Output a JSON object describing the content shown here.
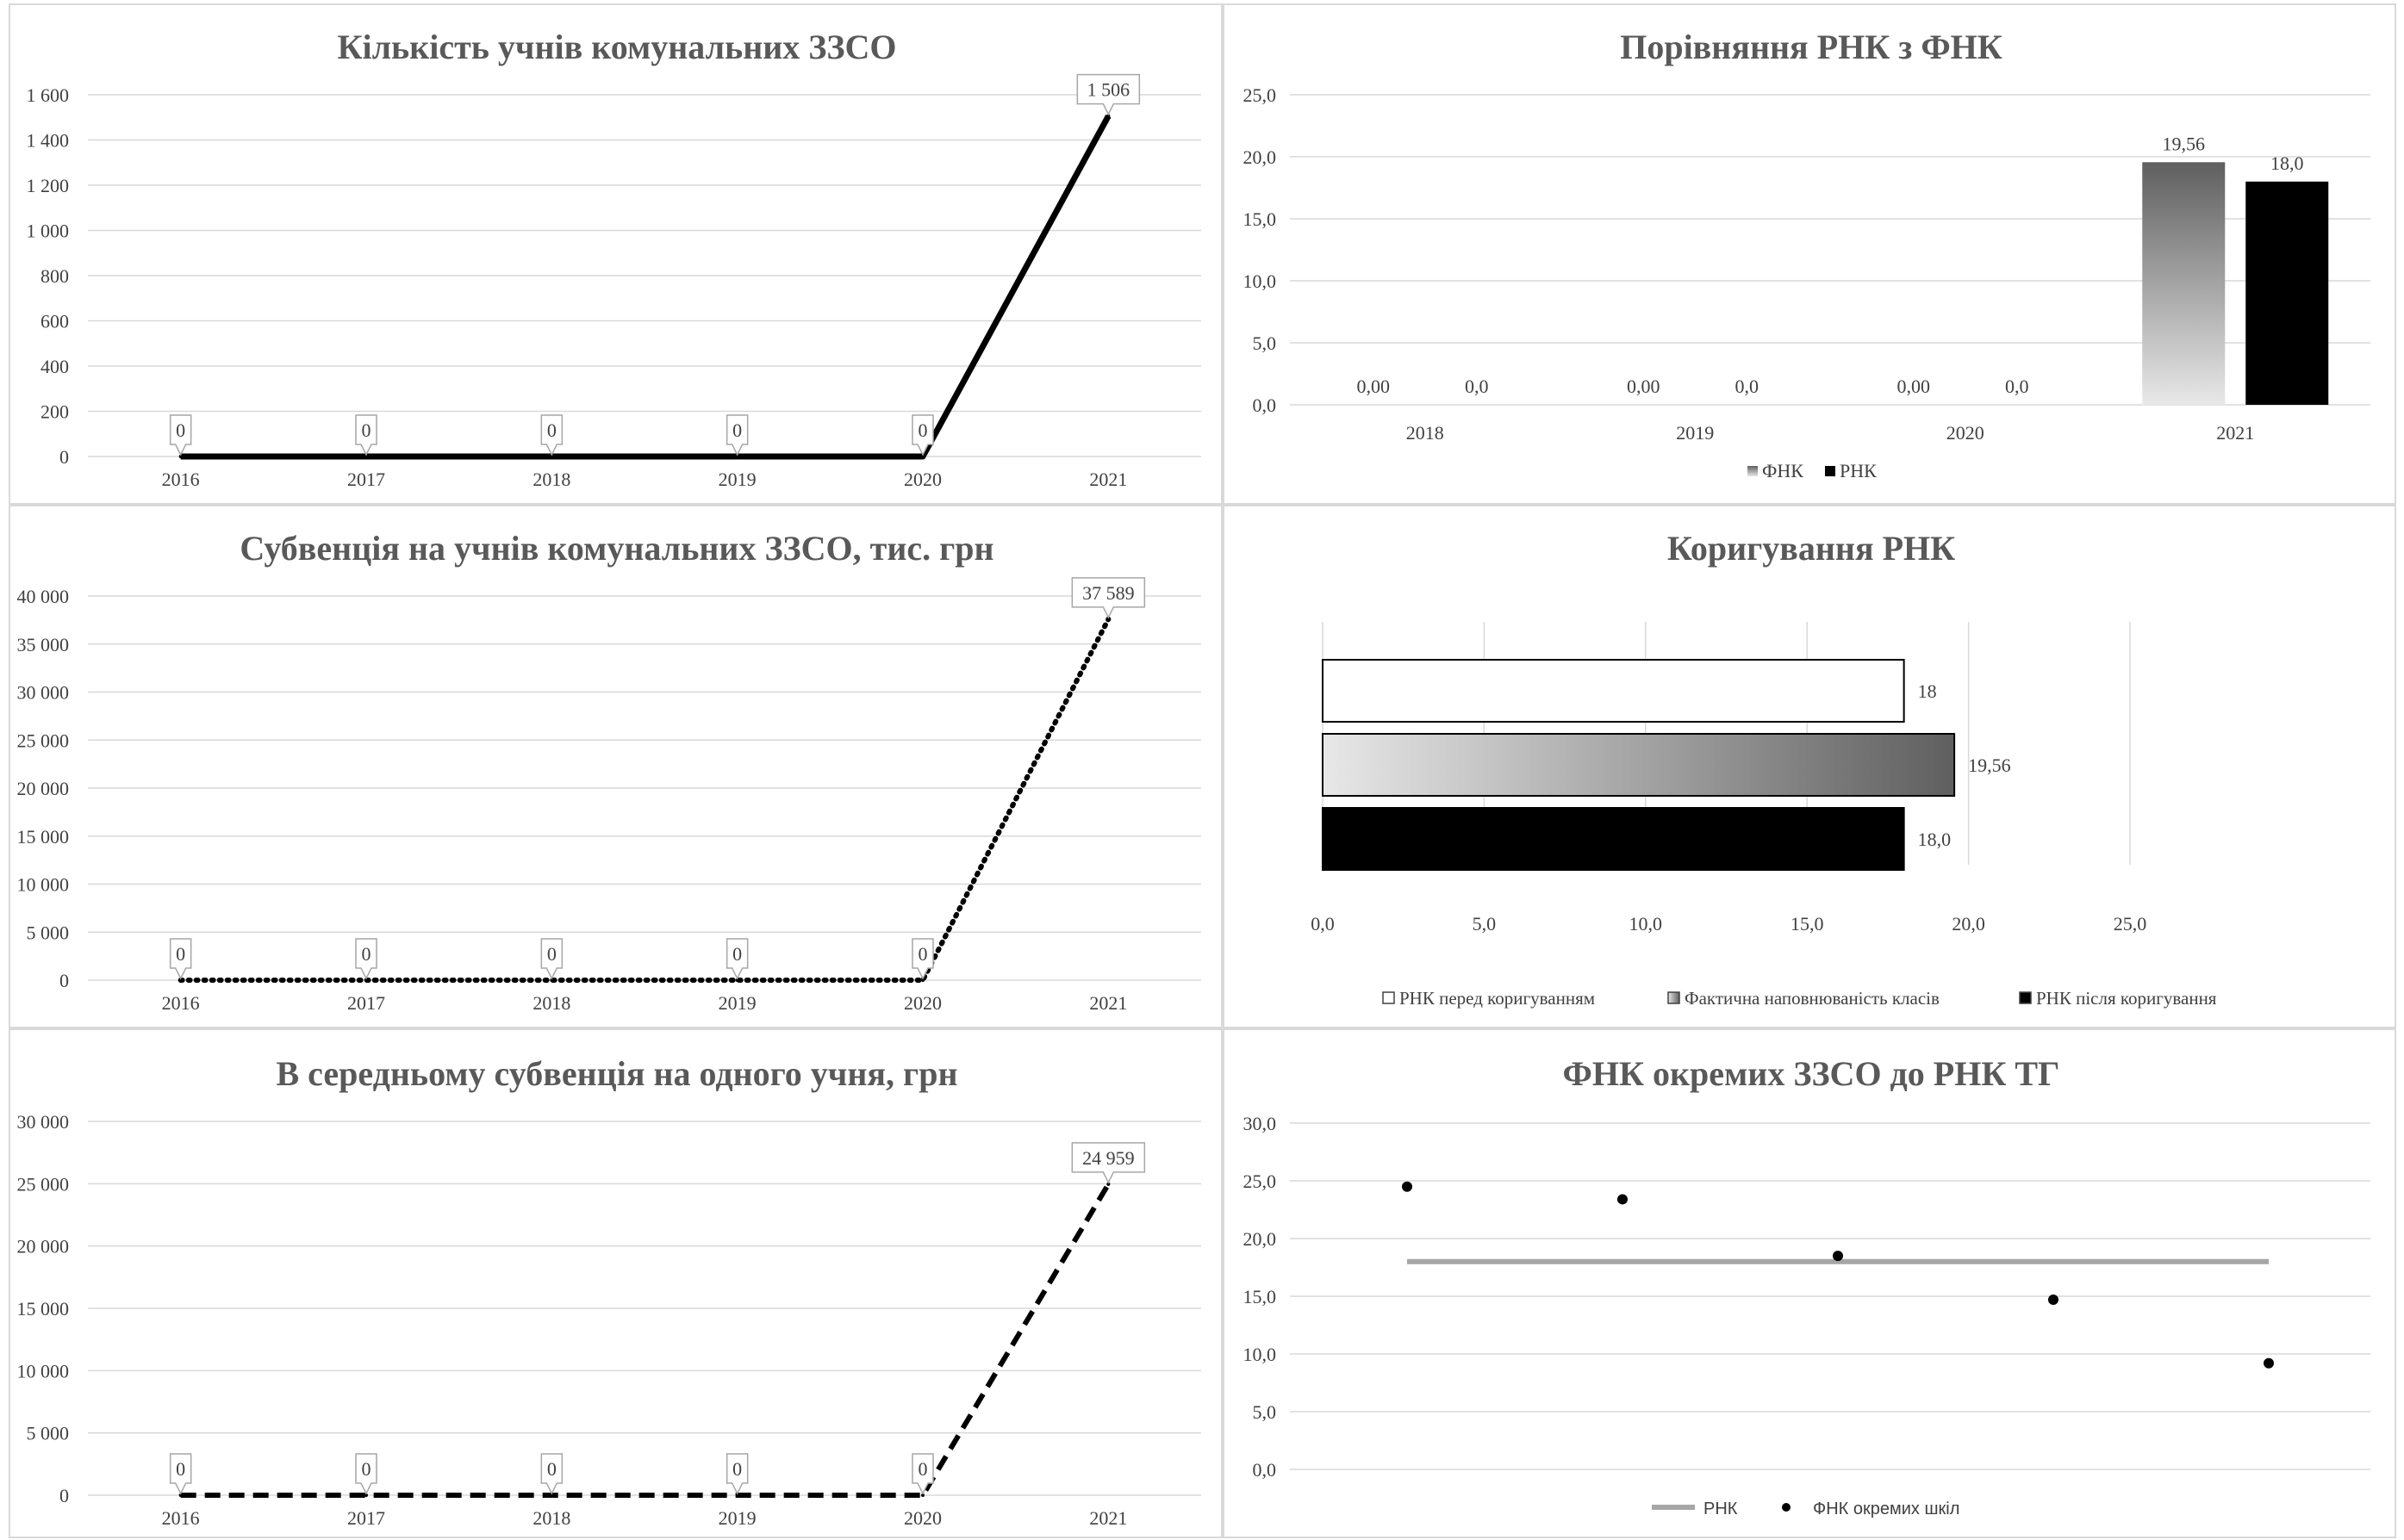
{
  "chart_data": [
    {
      "type": "line",
      "title": "Кількість учнів комунальних ЗЗСО",
      "xlabel": "",
      "ylabel": "",
      "categories": [
        "2016",
        "2017",
        "2018",
        "2019",
        "2020",
        "2021"
      ],
      "series": [
        {
          "values": [
            0,
            0,
            0,
            0,
            0,
            1506
          ],
          "labels": [
            "0",
            "0",
            "0",
            "0",
            "0",
            "1 506"
          ],
          "line_style": "solid"
        }
      ],
      "ylim": [
        0,
        1600
      ],
      "yticks": [
        "0",
        "200",
        "400",
        "600",
        "800",
        "1 000",
        "1 200",
        "1 400",
        "1 600"
      ],
      "grid": true
    },
    {
      "type": "bar",
      "title": "Порівняння РНК з ФНК",
      "xlabel": "",
      "ylabel": "",
      "categories": [
        "2018",
        "2019",
        "2020",
        "2021"
      ],
      "series": [
        {
          "name": "ФНК",
          "values": [
            0,
            0,
            0,
            19.56
          ],
          "labels": [
            "0,00",
            "0,00",
            "0,00",
            "19,56"
          ],
          "color": "gradient-gray"
        },
        {
          "name": "РНК",
          "values": [
            0,
            0,
            0,
            18.0
          ],
          "labels": [
            "0,0",
            "0,0",
            "0,0",
            "18,0"
          ],
          "color": "#000000"
        }
      ],
      "ylim": [
        0,
        25
      ],
      "yticks": [
        "0,0",
        "5,0",
        "10,0",
        "15,0",
        "20,0",
        "25,0"
      ],
      "legend": "bottom",
      "grid": true
    },
    {
      "type": "line",
      "title": "Субвенція на учнів комунальних ЗЗСО, тис. грн",
      "xlabel": "",
      "ylabel": "",
      "categories": [
        "2016",
        "2017",
        "2018",
        "2019",
        "2020",
        "2021"
      ],
      "series": [
        {
          "values": [
            0,
            0,
            0,
            0,
            0,
            37589
          ],
          "labels": [
            "0",
            "0",
            "0",
            "0",
            "0",
            "37 589"
          ],
          "line_style": "dotted"
        }
      ],
      "ylim": [
        0,
        40000
      ],
      "yticks": [
        "0",
        "5 000",
        "10 000",
        "15 000",
        "20 000",
        "25 000",
        "30 000",
        "35 000",
        "40 000"
      ],
      "grid": true
    },
    {
      "type": "bar",
      "orientation": "horizontal",
      "title": "Коригування РНК",
      "xlabel": "",
      "ylabel": "",
      "series": [
        {
          "name": "РНК перед коригуванням",
          "values": [
            18
          ],
          "labels": [
            "18"
          ],
          "color": "#ffffff"
        },
        {
          "name": "Фактична наповнюваність класів",
          "values": [
            19.56
          ],
          "labels": [
            "19,56"
          ],
          "color": "gradient-gray"
        },
        {
          "name": "РНК після коригування",
          "values": [
            18.0
          ],
          "labels": [
            "18,0"
          ],
          "color": "#000000"
        }
      ],
      "xlim": [
        0,
        25
      ],
      "xticks": [
        "0,0",
        "5,0",
        "10,0",
        "15,0",
        "20,0",
        "25,0"
      ],
      "legend": "bottom",
      "grid": true
    },
    {
      "type": "line",
      "title": "В середньому субвенція на одного учня, грн",
      "xlabel": "",
      "ylabel": "",
      "categories": [
        "2016",
        "2017",
        "2018",
        "2019",
        "2020",
        "2021"
      ],
      "series": [
        {
          "values": [
            0,
            0,
            0,
            0,
            0,
            24959
          ],
          "labels": [
            "0",
            "0",
            "0",
            "0",
            "0",
            "24 959"
          ],
          "line_style": "dashed"
        }
      ],
      "ylim": [
        0,
        30000
      ],
      "yticks": [
        "0",
        "5 000",
        "10 000",
        "15 000",
        "20 000",
        "25 000",
        "30 000"
      ],
      "grid": true
    },
    {
      "type": "scatter",
      "title": "ФНК окремих ЗЗСО до РНК ТГ",
      "xlabel": "",
      "ylabel": "",
      "series": [
        {
          "name": "РНК",
          "kind": "line",
          "x": [
            1,
            5
          ],
          "values": [
            18,
            18
          ],
          "color": "#a6a6a6"
        },
        {
          "name": "ФНК окремих шкіл",
          "kind": "scatter",
          "x": [
            1,
            2,
            3,
            4,
            5
          ],
          "values": [
            24.5,
            23.4,
            18.5,
            14.7,
            9.2
          ],
          "color": "#000000"
        }
      ],
      "ylim": [
        0,
        30
      ],
      "yticks": [
        "0,0",
        "5,0",
        "10,0",
        "15,0",
        "20,0",
        "25,0",
        "30,0"
      ],
      "legend": "bottom",
      "grid": true
    }
  ]
}
